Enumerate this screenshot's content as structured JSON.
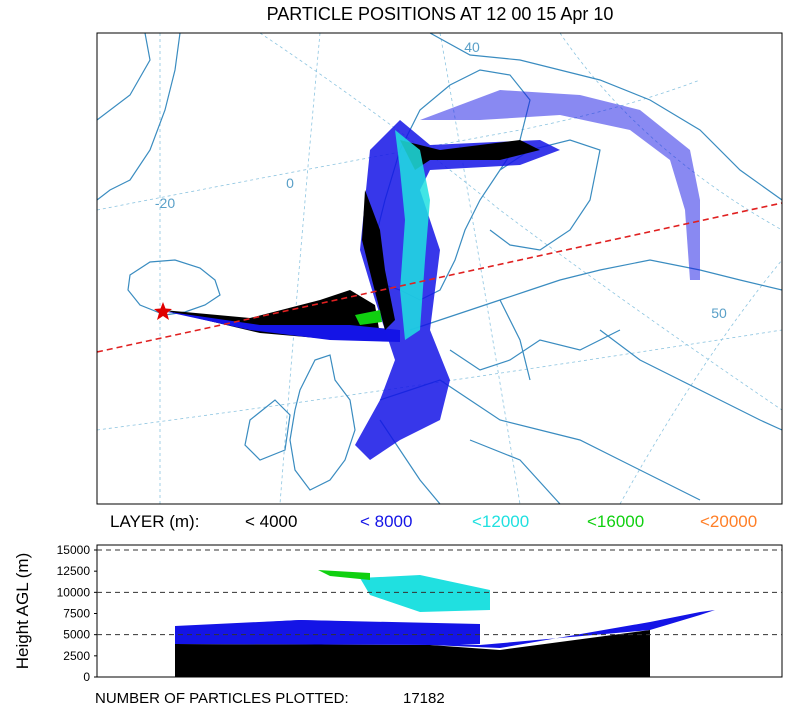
{
  "title": "PARTICLE POSITIONS AT 12 00  15 Apr 10",
  "map": {
    "grid_labels": [
      "40",
      "0",
      "-20",
      "50"
    ]
  },
  "legend": {
    "label": "LAYER (m):",
    "entries": [
      {
        "name": "< 4000",
        "color": "#000000"
      },
      {
        "name": "< 8000",
        "color": "#1414e6"
      },
      {
        "name": "<12000",
        "color": "#20e0e0"
      },
      {
        "name": "<16000",
        "color": "#10d010"
      },
      {
        "name": "<20000",
        "color": "#ff7f27"
      }
    ]
  },
  "height_panel": {
    "ylabel": "Height AGL (m)",
    "ylim": [
      0,
      15000
    ],
    "yticks": [
      0,
      2500,
      5000,
      7500,
      10000,
      12500,
      15000
    ],
    "dashed": [
      5000,
      10000,
      15000
    ]
  },
  "footer": {
    "label": "NUMBER OF PARTICLES PLOTTED:",
    "count": "17182"
  }
}
